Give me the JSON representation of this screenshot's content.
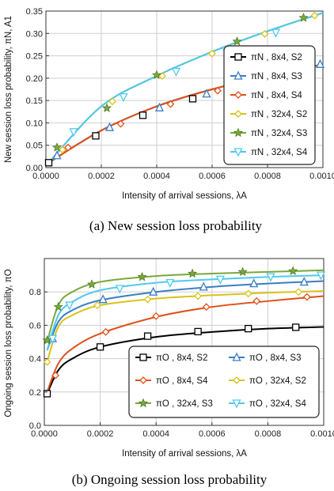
{
  "chart_data": [
    {
      "type": "line",
      "caption": "(a) New session loss probability",
      "xlabel": "Intensity of arrival sessions, λA",
      "ylabel": "New session loss probability, πN, A1",
      "xlim": [
        0,
        0.001
      ],
      "ylim": [
        0,
        0.35
      ],
      "xticks": [
        "0.0000",
        "0.0002",
        "0.0004",
        "0.0006",
        "0.0008",
        "0.0010"
      ],
      "yticks": [
        "0.00",
        "0.05",
        "0.10",
        "0.15",
        "0.20",
        "0.25",
        "0.30",
        "0.35"
      ],
      "grid": true,
      "legend_position": "right",
      "series": [
        {
          "name": "πN , 8x4, S2",
          "color": "#000000",
          "marker": "square",
          "x": [
            1e-05,
            0.0002,
            0.0004,
            0.0006,
            0.0008,
            0.001
          ],
          "y": [
            0.011,
            0.083,
            0.137,
            0.175,
            0.205,
            0.231
          ],
          "mx": [
            1e-05,
            0.00018,
            0.00035,
            0.00053,
            0.00071,
            0.00088
          ],
          "my": [
            0.011,
            0.071,
            0.117,
            0.154,
            0.183,
            0.21
          ]
        },
        {
          "name": "πN , 8x4, S3",
          "color": "#3a7dc4",
          "marker": "triangle",
          "x": [
            1e-05,
            0.0002,
            0.0004,
            0.0006,
            0.0008,
            0.001
          ],
          "y": [
            0.011,
            0.083,
            0.137,
            0.175,
            0.205,
            0.231
          ],
          "mx": [
            4e-05,
            0.00023,
            0.00041,
            0.00058,
            0.00076,
            0.00099
          ],
          "my": [
            0.027,
            0.09,
            0.134,
            0.165,
            0.196,
            0.231
          ]
        },
        {
          "name": "πN , 8x4, S4",
          "color": "#e0501a",
          "marker": "diamond",
          "x": [
            1e-05,
            0.0002,
            0.0004,
            0.0006,
            0.0008,
            0.001
          ],
          "y": [
            0.011,
            0.083,
            0.137,
            0.175,
            0.205,
            0.231
          ],
          "mx": [
            8e-05,
            0.00027,
            0.00045,
            0.00062,
            0.0008,
            0.00096
          ],
          "my": [
            0.045,
            0.098,
            0.142,
            0.172,
            0.205,
            0.226
          ]
        },
        {
          "name": "πN , 32x4, S2",
          "color": "#d9c21a",
          "marker": "diamond",
          "x": [
            1e-05,
            0.0002,
            0.0004,
            0.0006,
            0.0008,
            0.001
          ],
          "y": [
            0.011,
            0.137,
            0.205,
            0.259,
            0.305,
            0.346
          ],
          "mx": [
            6e-05,
            0.00024,
            0.00042,
            0.0006,
            0.00079,
            0.00097
          ],
          "my": [
            0.04,
            0.148,
            0.205,
            0.255,
            0.299,
            0.34
          ]
        },
        {
          "name": "πN , 32x4, S3",
          "color": "#7aa83a",
          "marker": "star",
          "x": [
            1e-05,
            0.0002,
            0.0004,
            0.0006,
            0.0008,
            0.001
          ],
          "y": [
            0.011,
            0.137,
            0.205,
            0.259,
            0.305,
            0.346
          ],
          "mx": [
            4e-05,
            0.00022,
            0.0004,
            0.00069,
            0.00093
          ],
          "my": [
            0.045,
            0.133,
            0.207,
            0.282,
            0.335
          ]
        },
        {
          "name": "πN , 32x4, S4",
          "color": "#4fc9f0",
          "marker": "invtriangle",
          "x": [
            1e-05,
            0.0002,
            0.0004,
            0.0006,
            0.0008,
            0.001
          ],
          "y": [
            0.011,
            0.137,
            0.205,
            0.259,
            0.305,
            0.346
          ],
          "mx": [
            0.0001,
            0.00028,
            0.00047,
            0.00065,
            0.00083
          ],
          "my": [
            0.08,
            0.158,
            0.215,
            0.262,
            0.302
          ]
        }
      ]
    },
    {
      "type": "line",
      "caption": "(b) Ongoing session loss probability",
      "xlabel": "Intensity of arrival sessions, λA",
      "ylabel": "Ongoing session loss probability, πO",
      "xlim": [
        0,
        0.001
      ],
      "ylim": [
        0,
        1.0
      ],
      "xticks": [
        "0.0000",
        "0.0002",
        "0.0004",
        "0.0006",
        "0.0008",
        "0.0010"
      ],
      "yticks": [
        "0.0",
        "0.2",
        "0.4",
        "0.6",
        "0.8"
      ],
      "grid": true,
      "legend_position": "bottom-right",
      "series": [
        {
          "name": "πO , 8x4, S2",
          "color": "#000000",
          "marker": "square",
          "x": [
            1e-05,
            5e-05,
            0.0001,
            0.0002,
            0.0004,
            0.0006,
            0.0008,
            0.001
          ],
          "y": [
            0.19,
            0.33,
            0.4,
            0.47,
            0.53,
            0.56,
            0.58,
            0.59
          ],
          "mx": [
            1e-05,
            0.0002,
            0.00037,
            0.00055,
            0.00073,
            0.0009
          ],
          "my": [
            0.19,
            0.47,
            0.535,
            0.562,
            0.58,
            0.588
          ]
        },
        {
          "name": "πO , 8x4, S3",
          "color": "#3a7dc4",
          "marker": "triangle",
          "x": [
            1e-05,
            5e-05,
            0.0001,
            0.0002,
            0.0004,
            0.0006,
            0.0008,
            0.001
          ],
          "y": [
            0.45,
            0.62,
            0.69,
            0.75,
            0.8,
            0.83,
            0.85,
            0.865
          ],
          "mx": [
            3e-05,
            0.00021,
            0.00039,
            0.00057,
            0.00075,
            0.00093
          ],
          "my": [
            0.52,
            0.755,
            0.8,
            0.83,
            0.85,
            0.86
          ]
        },
        {
          "name": "πO , 8x4, S4",
          "color": "#e0501a",
          "marker": "diamond",
          "x": [
            1e-05,
            5e-05,
            0.0001,
            0.0002,
            0.0004,
            0.0006,
            0.0008,
            0.001
          ],
          "y": [
            0.2,
            0.37,
            0.46,
            0.55,
            0.65,
            0.71,
            0.745,
            0.775
          ],
          "mx": [
            4e-05,
            0.00022,
            0.0004,
            0.00058,
            0.00076,
            0.00094
          ],
          "my": [
            0.3,
            0.56,
            0.655,
            0.71,
            0.745,
            0.77
          ]
        },
        {
          "name": "πO , 32x4, S2",
          "color": "#d9c21a",
          "marker": "diamond",
          "x": [
            1e-05,
            5e-05,
            0.0001,
            0.0002,
            0.0004,
            0.0006,
            0.0008,
            0.001
          ],
          "y": [
            0.38,
            0.59,
            0.66,
            0.72,
            0.76,
            0.78,
            0.795,
            0.805
          ],
          "mx": [
            1e-05,
            0.00019,
            0.00037,
            0.00055,
            0.00073,
            0.00091
          ],
          "my": [
            0.38,
            0.72,
            0.755,
            0.775,
            0.79,
            0.8
          ]
        },
        {
          "name": "πO , 32x4, S3",
          "color": "#7aa83a",
          "marker": "star",
          "x": [
            1e-05,
            5e-05,
            0.0001,
            0.0002,
            0.0004,
            0.0006,
            0.0008,
            0.001
          ],
          "y": [
            0.5,
            0.72,
            0.8,
            0.86,
            0.895,
            0.91,
            0.92,
            0.93
          ],
          "mx": [
            1e-05,
            5e-05,
            0.00017,
            0.00035,
            0.00053,
            0.00071,
            0.00089
          ],
          "my": [
            0.51,
            0.71,
            0.845,
            0.89,
            0.91,
            0.92,
            0.925
          ]
        },
        {
          "name": "πO , 32x4, S4",
          "color": "#4fc9f0",
          "marker": "invtriangle",
          "x": [
            1e-05,
            5e-05,
            0.0001,
            0.0002,
            0.0004,
            0.0006,
            0.0008,
            0.001
          ],
          "y": [
            0.45,
            0.66,
            0.74,
            0.81,
            0.855,
            0.875,
            0.89,
            0.9
          ],
          "mx": [
            3e-05,
            9e-05,
            0.00027,
            0.00045,
            0.00063,
            0.00081,
            0.00099
          ],
          "my": [
            0.52,
            0.72,
            0.82,
            0.855,
            0.875,
            0.89,
            0.9
          ]
        }
      ]
    }
  ]
}
